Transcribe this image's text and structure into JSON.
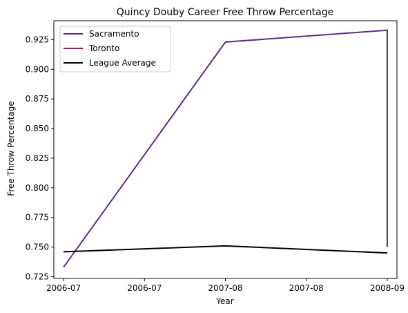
{
  "chart_data": {
    "type": "line",
    "title": "Quincy Douby Career Free Throw Percentage",
    "xlabel": "Year",
    "ylabel": "Free Throw Percentage",
    "x": [
      0,
      1,
      2
    ],
    "xlim": [
      -0.06,
      2.06
    ],
    "ylim": [
      0.7235,
      0.941
    ],
    "x_ticks": [
      {
        "x": 0,
        "label": "2006-07"
      },
      {
        "x": 0.5,
        "label": "2006-07"
      },
      {
        "x": 1,
        "label": "2007-08"
      },
      {
        "x": 1.5,
        "label": "2007-08"
      },
      {
        "x": 2,
        "label": "2008-09"
      },
      {
        "x": 2.5,
        "label": "2008-09"
      }
    ],
    "y_ticks": [
      {
        "y": 0.725,
        "label": "0.725"
      },
      {
        "y": 0.75,
        "label": "0.750"
      },
      {
        "y": 0.775,
        "label": "0.775"
      },
      {
        "y": 0.8,
        "label": "0.800"
      },
      {
        "y": 0.825,
        "label": "0.825"
      },
      {
        "y": 0.85,
        "label": "0.850"
      },
      {
        "y": 0.875,
        "label": "0.875"
      },
      {
        "y": 0.9,
        "label": "0.900"
      },
      {
        "y": 0.925,
        "label": "0.925"
      }
    ],
    "series": [
      {
        "name": "Sacramento",
        "color": "#5a2d82",
        "points": [
          [
            0,
            0.733
          ],
          [
            1,
            0.923
          ],
          [
            2,
            0.933
          ],
          [
            2,
            0.75
          ]
        ]
      },
      {
        "name": "Toronto",
        "color": "#c8103c",
        "points": [
          [
            2,
            0.75
          ]
        ]
      },
      {
        "name": "League Average",
        "color": "#000000",
        "points": [
          [
            0,
            0.746
          ],
          [
            1,
            0.751
          ],
          [
            2,
            0.745
          ]
        ]
      }
    ],
    "legend_position": "top-left",
    "grid": false
  }
}
